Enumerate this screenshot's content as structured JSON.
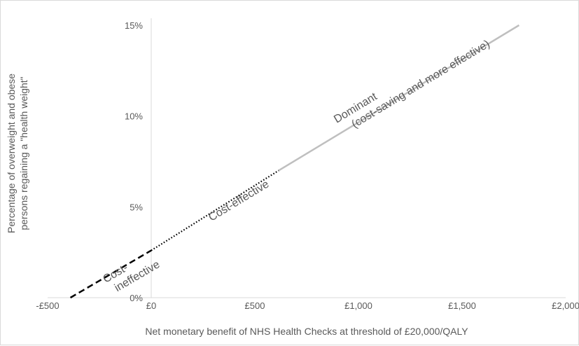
{
  "chart_data": {
    "type": "line",
    "xlabel": "Net monetary benefit of NHS Health Checks at threshold of £20,000/QALY",
    "ylabel_lines": [
      "Percentage of overweight and obese",
      "persons regaining a \"health weight\""
    ],
    "xlim": [
      -500,
      2000
    ],
    "ylim": [
      0,
      15
    ],
    "x_ticks": [
      -500,
      0,
      500,
      1000,
      1500,
      2000
    ],
    "x_tick_labels": [
      "-£500",
      "£0",
      "£500",
      "£1,000",
      "£1,500",
      "£2,000"
    ],
    "y_ticks": [
      0,
      5,
      10,
      15
    ],
    "y_tick_labels": [
      "0%",
      "5%",
      "10%",
      "15%"
    ],
    "grid": false,
    "legend": "none",
    "series": [
      {
        "style": "dashed",
        "color": "#000000",
        "x": [
          -390,
          0
        ],
        "y": [
          0,
          2.6
        ]
      },
      {
        "style": "dotted",
        "color": "#000000",
        "x": [
          0,
          615
        ],
        "y": [
          2.6,
          7.0
        ]
      },
      {
        "style": "solid",
        "color": "#bfbfbf",
        "x": [
          615,
          1775
        ],
        "y": [
          7.0,
          15
        ]
      }
    ],
    "annotations": [
      {
        "lines": [
          "Cost-",
          "ineffective"
        ],
        "x": -220,
        "y": 0.8
      },
      {
        "lines": [
          "Cost-effective"
        ],
        "x": 290,
        "y": 4.2
      },
      {
        "lines": [
          "Dominant",
          "(cost-saving and more effective)"
        ],
        "x": 895,
        "y": 9.6
      }
    ]
  }
}
